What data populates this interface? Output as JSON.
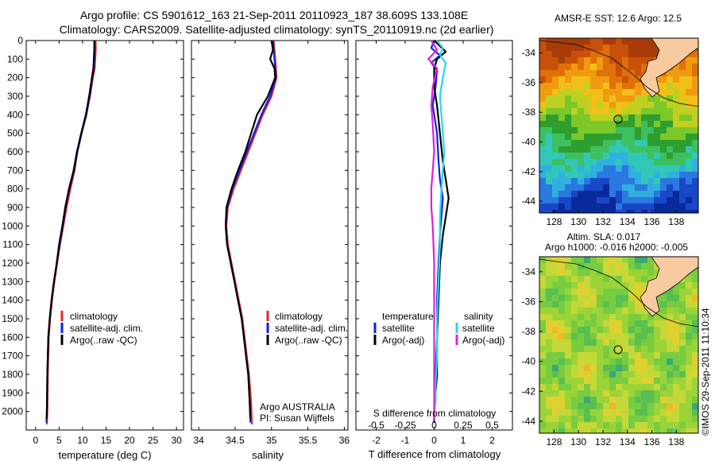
{
  "header": {
    "line1": "Argo profile: CS 5901612_163 21-Sep-2011 20110923_187 38.609S 133.108E",
    "line2": "Climatology: CARS2009. Satellite-adjusted climatology: synTS_20110919.nc (2d earlier)"
  },
  "colors": {
    "climatology": "#e8251c",
    "satellite": "#1020e6",
    "argo": "#000000",
    "satellite_salinity": "#22d8ee",
    "argo_salinity": "#e020d8",
    "land": "#f8caa0"
  },
  "chart_data": [
    {
      "type": "line",
      "xlabel": "temperature (deg C)",
      "x_ticks": [
        0,
        5,
        10,
        15,
        20,
        25,
        30
      ],
      "xlim": [
        -2,
        31.5
      ],
      "ylim": [
        2100,
        0
      ],
      "y_ticks": [
        0,
        100,
        200,
        300,
        400,
        500,
        600,
        700,
        800,
        900,
        1000,
        1100,
        1200,
        1300,
        1400,
        1500,
        1600,
        1700,
        1800,
        1900,
        2000
      ],
      "series": [
        {
          "name": "climatology",
          "color": "#e8251c",
          "x": [
            12.8,
            12.8,
            12.7,
            12.6,
            12.2,
            11.6,
            10.8,
            9.8,
            8.9,
            8.3,
            7.4,
            6.6,
            5.9,
            5.2,
            4.6,
            4.0,
            3.5,
            3.1,
            2.8,
            2.6,
            2.5,
            2.4
          ],
          "y": [
            0,
            50,
            100,
            150,
            200,
            300,
            400,
            500,
            600,
            700,
            800,
            900,
            1000,
            1100,
            1200,
            1300,
            1400,
            1500,
            1600,
            1800,
            2000,
            2070
          ]
        },
        {
          "name": "satellite-adj. clim.",
          "color": "#1020e6",
          "x": [
            12.6,
            12.6,
            12.5,
            12.4,
            12.1,
            11.5,
            10.8,
            9.8,
            8.9,
            8.2,
            7.2,
            6.4,
            5.8,
            5.1,
            4.5,
            3.9,
            3.4,
            3.0,
            2.7,
            2.5,
            2.4,
            2.3
          ],
          "y": [
            0,
            50,
            100,
            150,
            200,
            300,
            400,
            500,
            600,
            700,
            800,
            900,
            1000,
            1100,
            1200,
            1300,
            1400,
            1500,
            1600,
            1800,
            2000,
            2060
          ]
        },
        {
          "name": "Argo(..raw -QC)",
          "color": "#000000",
          "x": [
            12.5,
            12.5,
            12.4,
            12.3,
            12.0,
            11.4,
            10.7,
            9.7,
            8.8,
            8.1,
            7.1,
            6.3,
            5.7,
            5.0,
            4.5,
            3.9,
            3.4,
            3.0,
            2.7,
            2.5,
            2.4,
            2.35
          ],
          "y": [
            0,
            50,
            100,
            150,
            200,
            300,
            400,
            500,
            600,
            700,
            800,
            900,
            1000,
            1100,
            1200,
            1300,
            1400,
            1500,
            1600,
            1800,
            2000,
            2040
          ]
        }
      ],
      "legend": [
        "climatology",
        "satellite-adj. clim.",
        "Argo(..raw -QC)"
      ]
    },
    {
      "type": "line",
      "xlabel": "salinity",
      "x_ticks": [
        34,
        34.5,
        35,
        35.5,
        36
      ],
      "xlim": [
        33.9,
        36.05
      ],
      "ylim": [
        2100,
        0
      ],
      "annotation": [
        "Argo AUSTRALIA",
        "PI: Susan Wijffels"
      ],
      "series": [
        {
          "name": "climatology",
          "color": "#e8251c",
          "x": [
            35.03,
            35.04,
            35.05,
            35.06,
            35.07,
            35.0,
            34.88,
            34.78,
            34.68,
            34.58,
            34.48,
            34.4,
            34.38,
            34.4,
            34.45,
            34.5,
            34.55,
            34.6,
            34.63,
            34.66,
            34.69,
            34.72,
            34.73
          ],
          "y": [
            0,
            50,
            100,
            150,
            200,
            300,
            400,
            500,
            600,
            700,
            800,
            900,
            1000,
            1100,
            1200,
            1300,
            1400,
            1500,
            1600,
            1700,
            1800,
            1950,
            2070
          ]
        },
        {
          "name": "satellite-adj. clim.",
          "color": "#1020e6",
          "x": [
            35.02,
            35.03,
            35.04,
            35.05,
            35.06,
            34.98,
            34.86,
            34.76,
            34.66,
            34.56,
            34.46,
            34.39,
            34.37,
            34.39,
            34.44,
            34.49,
            34.54,
            34.59,
            34.62,
            34.65,
            34.68,
            34.7,
            34.71
          ],
          "y": [
            0,
            50,
            100,
            150,
            200,
            300,
            400,
            500,
            600,
            700,
            800,
            900,
            1000,
            1100,
            1200,
            1300,
            1400,
            1500,
            1600,
            1700,
            1800,
            1950,
            2060
          ]
        },
        {
          "name": "Argo(..raw -QC)",
          "color": "#000000",
          "x": [
            35.0,
            35.02,
            34.98,
            35.04,
            35.05,
            34.95,
            34.8,
            34.72,
            34.64,
            34.54,
            34.45,
            34.38,
            34.37,
            34.39,
            34.44,
            34.49,
            34.54,
            34.59,
            34.62,
            34.65,
            34.68,
            34.7,
            34.71
          ],
          "y": [
            0,
            50,
            100,
            150,
            200,
            300,
            400,
            500,
            600,
            700,
            800,
            900,
            1000,
            1100,
            1200,
            1300,
            1400,
            1500,
            1600,
            1700,
            1800,
            1950,
            2040
          ]
        }
      ],
      "legend": [
        "climatology",
        "satellite-adj. clim.",
        "Argo(..raw -QC)"
      ]
    },
    {
      "type": "line",
      "xlabel": "T difference from climatology",
      "x_ticks": [
        -2,
        -1,
        0,
        1,
        2
      ],
      "x2label": "S difference from climatology",
      "x2_ticks": [
        "-0.5",
        "-0.25",
        "0",
        "0.25",
        "0.5"
      ],
      "xlim": [
        -2.7,
        2.7
      ],
      "ylim": [
        2100,
        0
      ],
      "legend_headers": [
        "temperature",
        "salinity"
      ],
      "series": [
        {
          "name": "satellite",
          "group": "temperature",
          "color": "#1020e6",
          "x": [
            0.0,
            -0.1,
            0.2,
            -0.1,
            0.1,
            0.05,
            -0.05,
            0.1,
            0.15,
            0.2,
            0.3,
            0.25,
            0.2,
            0.15,
            0.1,
            0.1,
            0.05,
            0.05,
            0.0,
            0.0,
            0.0
          ],
          "y": [
            0,
            40,
            80,
            120,
            160,
            250,
            350,
            500,
            650,
            750,
            850,
            950,
            1050,
            1200,
            1400,
            1600,
            1800,
            1900,
            2000,
            2040,
            2060
          ]
        },
        {
          "name": "Argo(-adj)",
          "group": "temperature",
          "color": "#000000",
          "x": [
            0.0,
            0.2,
            0.4,
            0.1,
            0.0,
            0.0,
            0.1,
            0.2,
            0.3,
            0.4,
            0.5,
            0.4,
            0.3,
            0.2,
            0.15,
            0.1,
            0.1,
            0.05,
            0.0,
            0.0,
            0.0
          ],
          "y": [
            0,
            30,
            60,
            100,
            150,
            250,
            350,
            500,
            650,
            750,
            850,
            950,
            1050,
            1200,
            1400,
            1600,
            1800,
            1900,
            2000,
            2040,
            2060
          ]
        },
        {
          "name": "satellite",
          "group": "salinity",
          "color": "#22d8ee",
          "x": [
            0.1,
            0.3,
            0.2,
            0.4,
            0.3,
            0.2,
            0.25,
            0.3,
            0.35,
            0.3,
            0.25,
            0.2,
            0.2,
            0.15,
            0.1,
            0.1,
            0.05,
            0.05,
            0.0,
            0.0
          ],
          "y": [
            0,
            40,
            80,
            120,
            200,
            300,
            400,
            500,
            600,
            700,
            800,
            950,
            1100,
            1300,
            1500,
            1700,
            1850,
            1950,
            2000,
            2050
          ]
        },
        {
          "name": "Argo(-adj)",
          "group": "salinity",
          "color": "#e020d8",
          "x": [
            -0.1,
            0.1,
            -0.2,
            0.1,
            -0.05,
            -0.1,
            -0.05,
            0.0,
            -0.05,
            -0.1,
            -0.1,
            -0.05,
            0.0,
            0.0,
            0.0,
            0.0,
            0.0,
            0.0,
            0.0
          ],
          "y": [
            0,
            50,
            100,
            150,
            250,
            350,
            450,
            600,
            700,
            800,
            900,
            1000,
            1200,
            1400,
            1600,
            1800,
            1950,
            2000,
            2050
          ]
        }
      ]
    },
    {
      "type": "heatmap",
      "title": "AMSR-E SST: 12.6 Argo: 12.5",
      "x_ticks": [
        128,
        130,
        132,
        134,
        136,
        138
      ],
      "y_ticks": [
        -34,
        -36,
        -38,
        -40,
        -42,
        -44
      ],
      "xlim": [
        126.8,
        139.8
      ],
      "ylim": [
        -44.8,
        -33
      ],
      "marker": {
        "lon": 133.108,
        "lat": -38.609
      }
    },
    {
      "type": "heatmap",
      "title": "Altim. SLA: 0.017",
      "subtitle": "Argo h1000: -0.016 h2000: -0.005",
      "x_ticks": [
        128,
        130,
        132,
        134,
        136,
        138
      ],
      "y_ticks": [
        -34,
        -36,
        -38,
        -40,
        -42,
        -44
      ],
      "xlim": [
        126.8,
        139.8
      ],
      "ylim": [
        -44.8,
        -33
      ],
      "marker": {
        "lon": 133.108,
        "lat": -38.609
      }
    }
  ],
  "footer": {
    "stamp": "©IMOS 29-Sep-2011 11:10:34"
  }
}
